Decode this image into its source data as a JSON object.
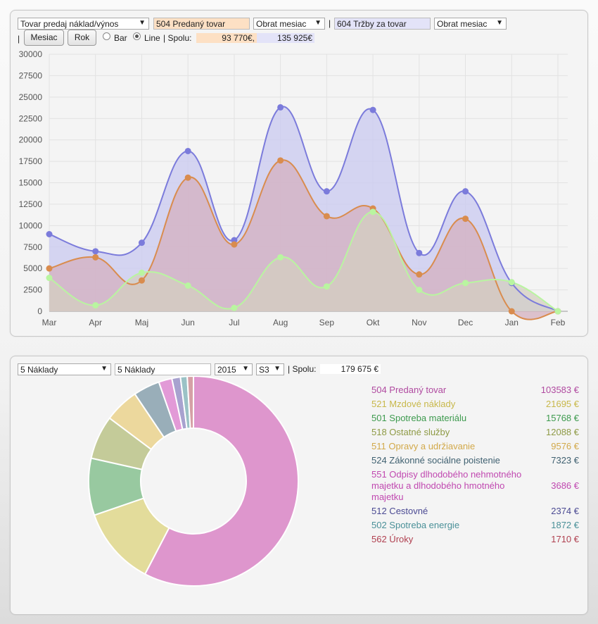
{
  "top": {
    "type_select": "Tovar predaj náklad/výnos",
    "account1": "504 Predaný tovar",
    "period1": "Obrat mesiac",
    "separator": "|",
    "account2": "604 Tržby za tovar",
    "period2": "Obrat mesiac",
    "lead_pipe": "|",
    "btn_month": "Mesiac",
    "btn_year": "Rok",
    "radio_bar": "Bar",
    "radio_line": "Line",
    "radio_selected": "Line",
    "total_label": "| Spolu:",
    "total1": "93 770€,",
    "total2": "135 925€"
  },
  "chart_data": {
    "type": "area",
    "categories": [
      "Mar",
      "Apr",
      "Maj",
      "Jun",
      "Jul",
      "Aug",
      "Sep",
      "Okt",
      "Nov",
      "Dec",
      "Jan",
      "Feb"
    ],
    "ylim": [
      0,
      30000
    ],
    "yticks": [
      "30000",
      "27500",
      "25000",
      "22500",
      "20000",
      "17500",
      "15000",
      "12500",
      "10000",
      "7500",
      "5000",
      "2500",
      "0"
    ],
    "ytick_values": [
      30000,
      27500,
      25000,
      22500,
      20000,
      17500,
      15000,
      12500,
      10000,
      7500,
      5000,
      2500,
      0
    ],
    "grid": true,
    "series": [
      {
        "values": [
          9000,
          7000,
          8000,
          18700,
          8300,
          23800,
          14000,
          23500,
          6800,
          14000,
          3300,
          0
        ],
        "color": "#7b7bdb",
        "fill": "#c9c9f0"
      },
      {
        "values": [
          5000,
          6300,
          3600,
          15600,
          7800,
          17600,
          11100,
          12000,
          4300,
          10800,
          0,
          0
        ],
        "color": "#d98c4e",
        "fill": "#d4b0bf"
      },
      {
        "values": [
          3900,
          700,
          4500,
          3000,
          400,
          6300,
          2900,
          11600,
          2500,
          3300,
          3400,
          0
        ],
        "color": "#b9f5a0",
        "fill": "#d4cfc0"
      }
    ]
  },
  "bottom": {
    "class_select": "5 Náklady",
    "class_input": "5 Náklady",
    "year": "2015",
    "level": "S3",
    "total_label": "| Spolu:",
    "total": "179 675 €"
  },
  "pie": {
    "type": "pie",
    "items": [
      {
        "label": "504 Predaný tovar",
        "value": 103583,
        "display": "103583 €",
        "color": "#de96cd",
        "text_color": "#b04aa0"
      },
      {
        "label": "521 Mzdové náklady",
        "value": 21695,
        "display": "21695 €",
        "color": "#e3dc9b",
        "text_color": "#c8b84a"
      },
      {
        "label": "501 Spotreba materiálu",
        "value": 15768,
        "display": "15768 €",
        "color": "#98c9a0",
        "text_color": "#3d9a4e"
      },
      {
        "label": "518 Ostatné služby",
        "value": 12088,
        "display": "12088 €",
        "color": "#c4cb99",
        "text_color": "#8e9a45"
      },
      {
        "label": "511 Opravy a udržiavanie",
        "value": 9576,
        "display": "9576 €",
        "color": "#ecd89d",
        "text_color": "#d2a94a"
      },
      {
        "label": "524 Zákonné sociálne poistenie",
        "value": 7323,
        "display": "7323 €",
        "color": "#99aeb9",
        "text_color": "#3f6070"
      },
      {
        "label": "551 Odpisy dlhodobého nehmotného majetku a dlhodobého hmotného majetku",
        "value": 3686,
        "display": "3686 €",
        "color": "#e29ad7",
        "text_color": "#c048b0"
      },
      {
        "label": "512 Cestovné",
        "value": 2374,
        "display": "2374 €",
        "color": "#a8a2cf",
        "text_color": "#4b4a93"
      },
      {
        "label": "502 Spotreba energie",
        "value": 1872,
        "display": "1872 €",
        "color": "#9bc2c6",
        "text_color": "#4a9098"
      },
      {
        "label": "562 Úroky",
        "value": 1710,
        "display": "1710 €",
        "color": "#d5a0a6",
        "text_color": "#b04050"
      }
    ]
  }
}
